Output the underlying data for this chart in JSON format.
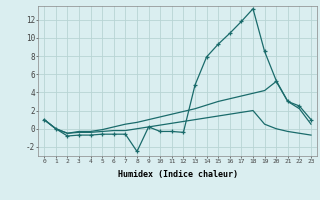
{
  "xlabel": "Humidex (Indice chaleur)",
  "bg_color": "#daeef0",
  "line_color": "#1a6b6b",
  "grid_color": "#b8d4d4",
  "ylim": [
    -3.0,
    13.5
  ],
  "xlim": [
    -0.5,
    23.5
  ],
  "yticks": [
    -2,
    0,
    2,
    4,
    6,
    8,
    10,
    12
  ],
  "xticks": [
    0,
    1,
    2,
    3,
    4,
    5,
    6,
    7,
    8,
    9,
    10,
    11,
    12,
    13,
    14,
    15,
    16,
    17,
    18,
    19,
    20,
    21,
    22,
    23
  ],
  "line1_x": [
    0,
    1,
    2,
    3,
    4,
    5,
    6,
    7,
    8,
    9,
    10,
    11,
    12,
    13,
    14,
    15,
    16,
    17,
    18,
    19,
    20,
    21,
    22,
    23
  ],
  "line1_y": [
    1.0,
    0.0,
    -0.8,
    -0.7,
    -0.7,
    -0.6,
    -0.6,
    -0.6,
    -2.5,
    0.2,
    -0.3,
    -0.3,
    -0.4,
    4.8,
    7.9,
    9.3,
    10.5,
    11.8,
    13.2,
    8.5,
    5.3,
    3.0,
    2.5,
    1.0
  ],
  "line2_x": [
    0,
    1,
    2,
    3,
    4,
    5,
    6,
    7,
    8,
    9,
    10,
    11,
    12,
    13,
    14,
    15,
    16,
    17,
    18,
    19,
    20,
    21,
    22,
    23
  ],
  "line2_y": [
    1.0,
    0.0,
    -0.5,
    -0.3,
    -0.3,
    -0.1,
    0.2,
    0.5,
    0.7,
    1.0,
    1.3,
    1.6,
    1.9,
    2.2,
    2.6,
    3.0,
    3.3,
    3.6,
    3.9,
    4.2,
    5.2,
    3.0,
    2.2,
    0.5
  ],
  "line3_x": [
    0,
    1,
    2,
    3,
    4,
    5,
    6,
    7,
    8,
    9,
    10,
    11,
    12,
    13,
    14,
    15,
    16,
    17,
    18,
    19,
    20,
    21,
    22,
    23
  ],
  "line3_y": [
    1.0,
    0.0,
    -0.5,
    -0.4,
    -0.4,
    -0.3,
    -0.2,
    -0.2,
    0.0,
    0.2,
    0.4,
    0.6,
    0.8,
    1.0,
    1.2,
    1.4,
    1.6,
    1.8,
    2.0,
    0.5,
    0.0,
    -0.3,
    -0.5,
    -0.7
  ]
}
